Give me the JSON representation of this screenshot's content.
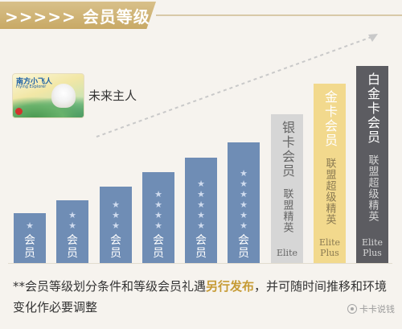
{
  "header": {
    "title": ">>>>> 会员等级"
  },
  "card": {
    "title": "南方小飞人",
    "subtitle": "Flying Explorer",
    "caption": "未来主人"
  },
  "tiers": [
    {
      "stars": 1,
      "label": "会员"
    },
    {
      "stars": 2,
      "label": "会员"
    },
    {
      "stars": 3,
      "label": "会员"
    },
    {
      "stars": 4,
      "label": "会员"
    },
    {
      "stars": 5,
      "label": "会员"
    },
    {
      "stars": 6,
      "label": "会员"
    }
  ],
  "premium_tiers": {
    "silver": {
      "name": "银卡会员",
      "alliance": "联盟精英",
      "en": "Elite"
    },
    "gold": {
      "name": "金卡会员",
      "alliance": "联盟超级精英",
      "en_line1": "Elite",
      "en_line2": "Plus"
    },
    "platinum": {
      "name": "白金卡会员",
      "alliance": "联盟超级精英",
      "en_line1": "Elite",
      "en_line2": "Plus"
    }
  },
  "footnote": {
    "before": "**会员等级划分条件和等级会员礼遇",
    "highlight": "另行发布",
    "after": "，并可随时间推移和环境变化作必要调整"
  },
  "watermark": {
    "text": "卡卡说钱"
  },
  "colors": {
    "gold_header": "#c8a965",
    "blue_bar": "#6f8db5",
    "silver": "#d6d6d6",
    "gold": "#f2d98d",
    "platinum": "#5c5c61"
  }
}
